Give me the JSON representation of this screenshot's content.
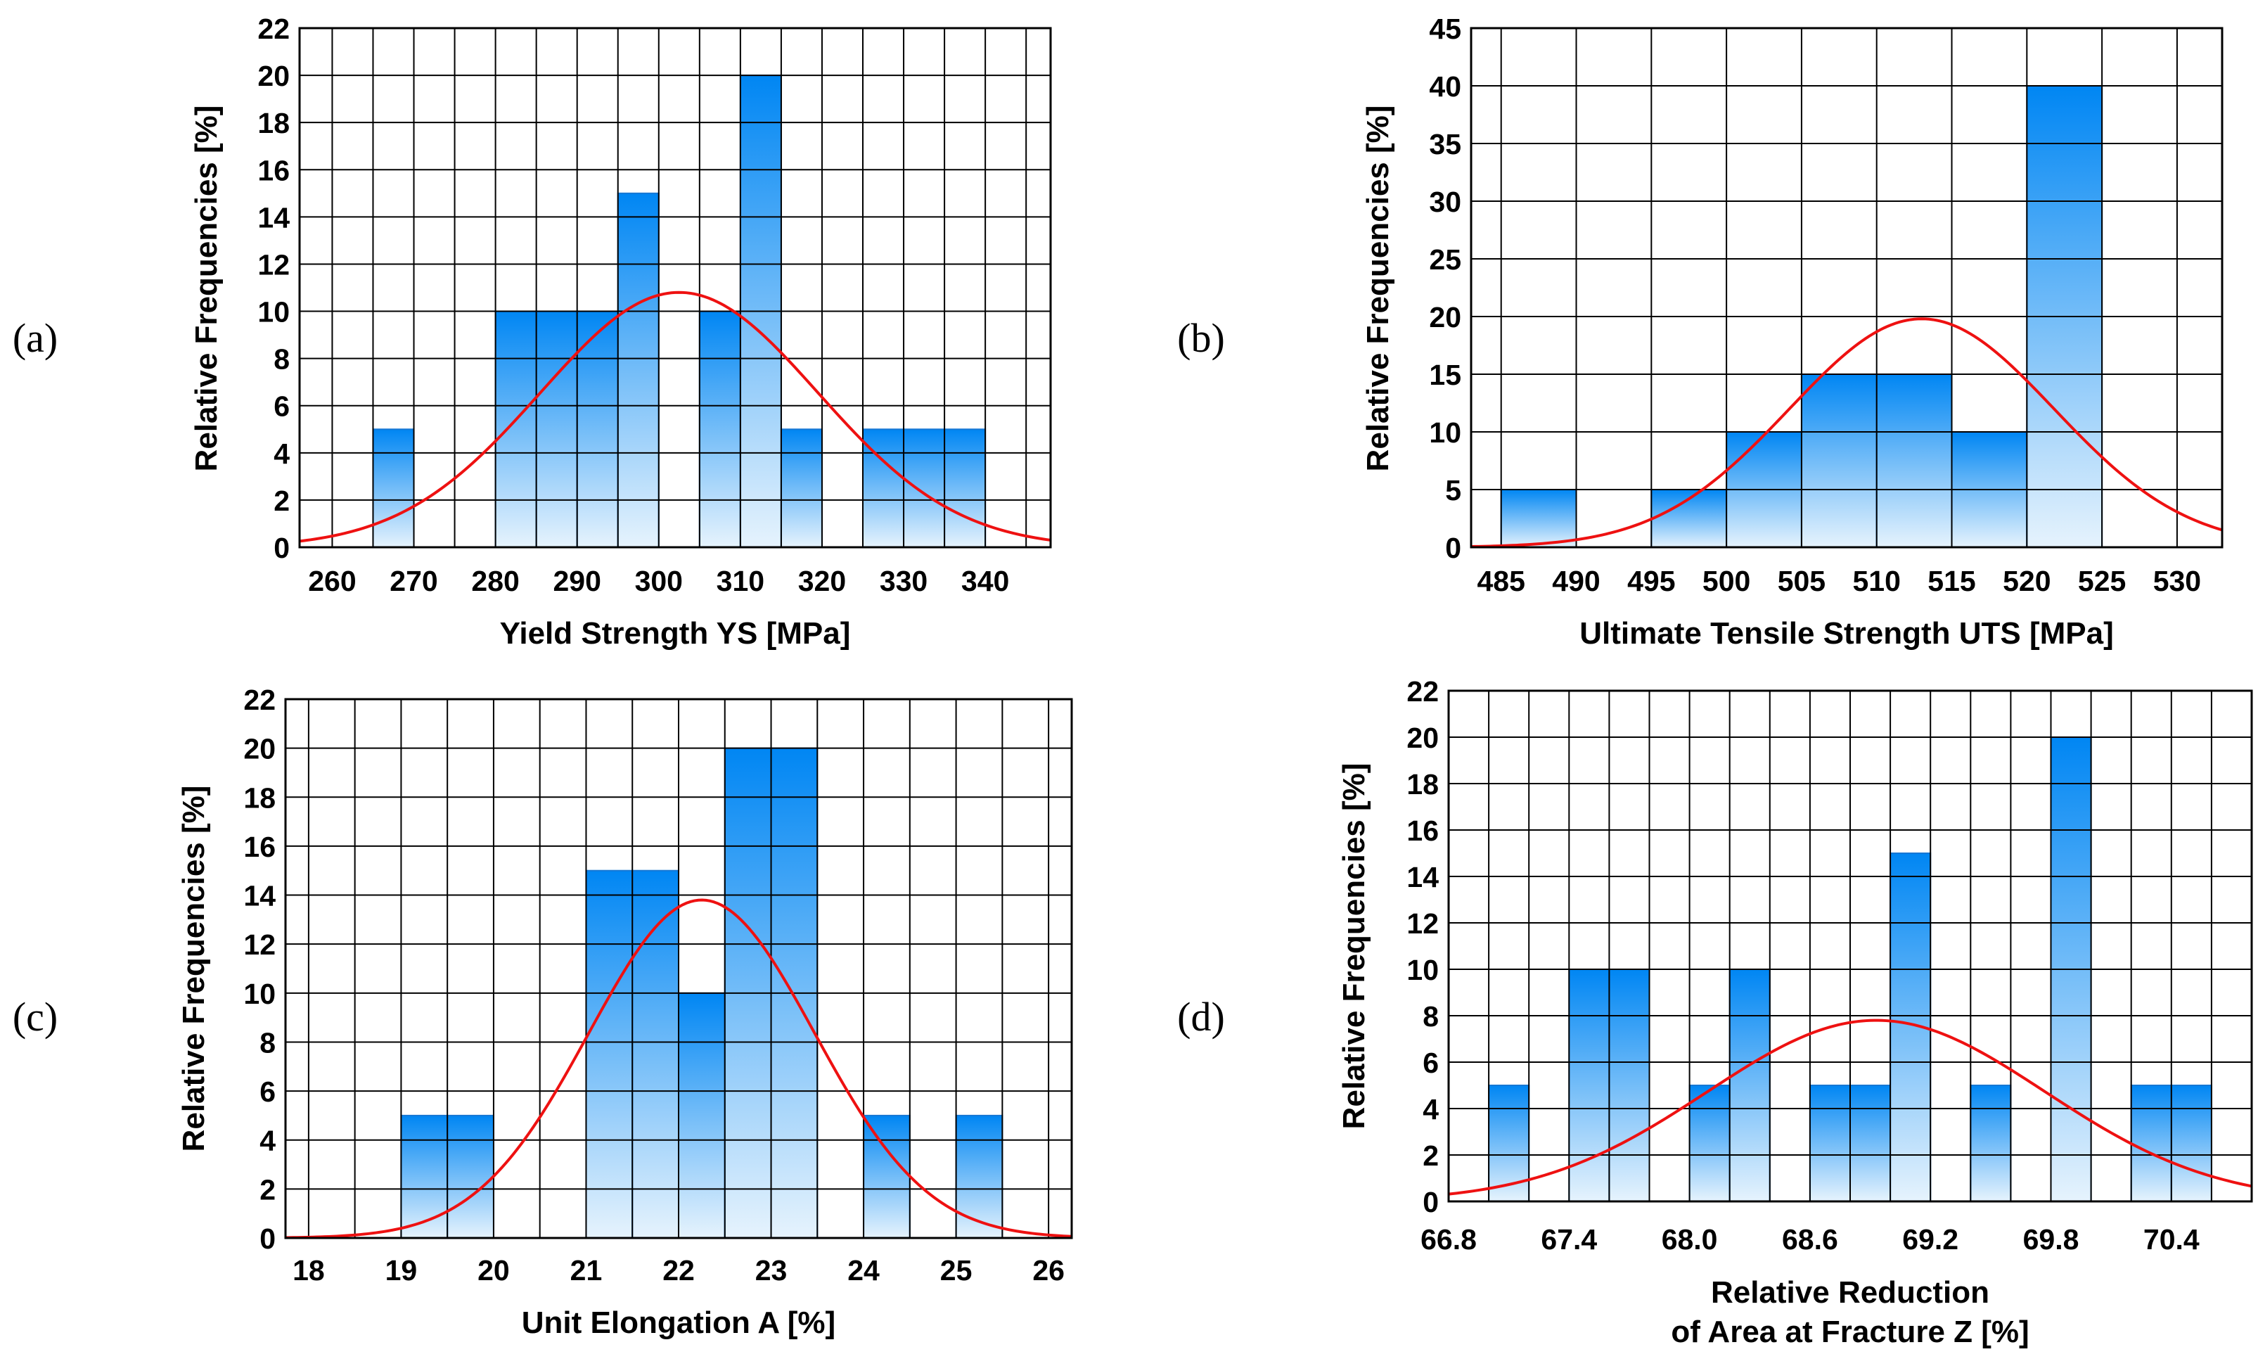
{
  "chart_data": [
    {
      "type": "bar",
      "panel_label": "(a)",
      "xlabel": [
        "Yield Strength YS [MPa]"
      ],
      "ylabel": "Relative Frequencies [%]",
      "xlim": [
        256,
        348
      ],
      "ylim": [
        0,
        22
      ],
      "xticks": [
        260,
        270,
        280,
        290,
        300,
        310,
        320,
        330,
        340
      ],
      "yticks": [
        0,
        2,
        4,
        6,
        8,
        10,
        12,
        14,
        16,
        18,
        20,
        22
      ],
      "x_grid_step": 5,
      "y_grid_step": 2,
      "bin_width": 5,
      "bins": [
        {
          "x0": 265,
          "value": 5
        },
        {
          "x0": 280,
          "value": 10
        },
        {
          "x0": 285,
          "value": 10
        },
        {
          "x0": 290,
          "value": 10
        },
        {
          "x0": 295,
          "value": 15
        },
        {
          "x0": 305,
          "value": 10
        },
        {
          "x0": 310,
          "value": 20
        },
        {
          "x0": 315,
          "value": 5
        },
        {
          "x0": 325,
          "value": 5
        },
        {
          "x0": 330,
          "value": 5
        },
        {
          "x0": 335,
          "value": 5
        }
      ],
      "fit": {
        "type": "normal",
        "mean": 302.5,
        "peak": 10.8,
        "sd": 17
      },
      "grid": true,
      "colors": {
        "bar_top": "#0086f3",
        "bar_bottom": "#e6f3fd",
        "bar_edge": "#1677d4",
        "fit": "#ee1111",
        "grid": "#000000"
      }
    },
    {
      "type": "bar",
      "panel_label": "(b)",
      "xlabel": [
        "Ultimate Tensile Strength UTS [MPa]"
      ],
      "ylabel": "Relative Frequencies [%]",
      "xlim": [
        483,
        533
      ],
      "ylim": [
        0,
        45
      ],
      "xticks": [
        485,
        490,
        495,
        500,
        505,
        510,
        515,
        520,
        525,
        530
      ],
      "yticks": [
        0,
        5,
        10,
        15,
        20,
        25,
        30,
        35,
        40,
        45
      ],
      "x_grid_step": 5,
      "y_grid_step": 5,
      "bin_width": 5,
      "bins": [
        {
          "x0": 485,
          "value": 5
        },
        {
          "x0": 495,
          "value": 5
        },
        {
          "x0": 500,
          "value": 10
        },
        {
          "x0": 505,
          "value": 15
        },
        {
          "x0": 510,
          "value": 15
        },
        {
          "x0": 515,
          "value": 10
        },
        {
          "x0": 520,
          "value": 40
        }
      ],
      "fit": {
        "type": "normal",
        "mean": 513,
        "peak": 19.8,
        "sd": 8.8
      },
      "grid": true,
      "colors": {
        "bar_top": "#0086f3",
        "bar_bottom": "#e6f3fd",
        "bar_edge": "#1677d4",
        "fit": "#ee1111",
        "grid": "#000000"
      }
    },
    {
      "type": "bar",
      "panel_label": "(c)",
      "xlabel": [
        "Unit Elongation A [%]"
      ],
      "ylabel": "Relative Frequencies [%]",
      "xlim": [
        17.75,
        26.25
      ],
      "ylim": [
        0,
        22
      ],
      "xticks": [
        18,
        19,
        20,
        21,
        22,
        23,
        24,
        25,
        26
      ],
      "yticks": [
        0,
        2,
        4,
        6,
        8,
        10,
        12,
        14,
        16,
        18,
        20,
        22
      ],
      "x_grid_step": 0.5,
      "y_grid_step": 2,
      "bin_width": 0.5,
      "bins": [
        {
          "x0": 19.0,
          "value": 5
        },
        {
          "x0": 19.5,
          "value": 5
        },
        {
          "x0": 21.0,
          "value": 15
        },
        {
          "x0": 21.5,
          "value": 15
        },
        {
          "x0": 22.0,
          "value": 10
        },
        {
          "x0": 22.5,
          "value": 20
        },
        {
          "x0": 23.0,
          "value": 20
        },
        {
          "x0": 24.0,
          "value": 5
        },
        {
          "x0": 25.0,
          "value": 5
        }
      ],
      "fit": {
        "type": "normal",
        "mean": 22.25,
        "peak": 13.8,
        "sd": 1.22
      },
      "grid": true,
      "colors": {
        "bar_top": "#0086f3",
        "bar_bottom": "#e6f3fd",
        "bar_edge": "#1677d4",
        "fit": "#ee1111",
        "grid": "#000000"
      }
    },
    {
      "type": "bar",
      "panel_label": "(d)",
      "xlabel": [
        "Relative Reduction",
        "of Area at Fracture Z [%]"
      ],
      "ylabel": "Relative Frequencies [%]",
      "xlim": [
        66.8,
        70.8
      ],
      "ylim": [
        0,
        22
      ],
      "xticks": [
        66.8,
        67.4,
        68.0,
        68.6,
        69.2,
        69.8,
        70.4
      ],
      "xtick_labels": [
        "66.8",
        "67.4",
        "68.0",
        "68.6",
        "69.2",
        "69.8",
        "70.4"
      ],
      "yticks": [
        0,
        2,
        4,
        6,
        8,
        10,
        12,
        14,
        16,
        18,
        20,
        22
      ],
      "x_grid_step": 0.2,
      "y_grid_step": 2,
      "bin_width": 0.2,
      "bins": [
        {
          "x0": 67.0,
          "value": 5
        },
        {
          "x0": 67.4,
          "value": 10
        },
        {
          "x0": 67.6,
          "value": 10
        },
        {
          "x0": 68.0,
          "value": 5
        },
        {
          "x0": 68.2,
          "value": 10
        },
        {
          "x0": 68.6,
          "value": 5
        },
        {
          "x0": 68.8,
          "value": 5
        },
        {
          "x0": 69.0,
          "value": 15
        },
        {
          "x0": 69.4,
          "value": 5
        },
        {
          "x0": 69.8,
          "value": 20
        },
        {
          "x0": 70.2,
          "value": 5
        },
        {
          "x0": 70.4,
          "value": 5
        }
      ],
      "fit": {
        "type": "normal",
        "mean": 68.93,
        "peak": 7.8,
        "sd": 0.84
      },
      "grid": true,
      "colors": {
        "bar_top": "#0086f3",
        "bar_bottom": "#e6f3fd",
        "bar_edge": "#1677d4",
        "fit": "#ee1111",
        "grid": "#000000"
      }
    }
  ]
}
